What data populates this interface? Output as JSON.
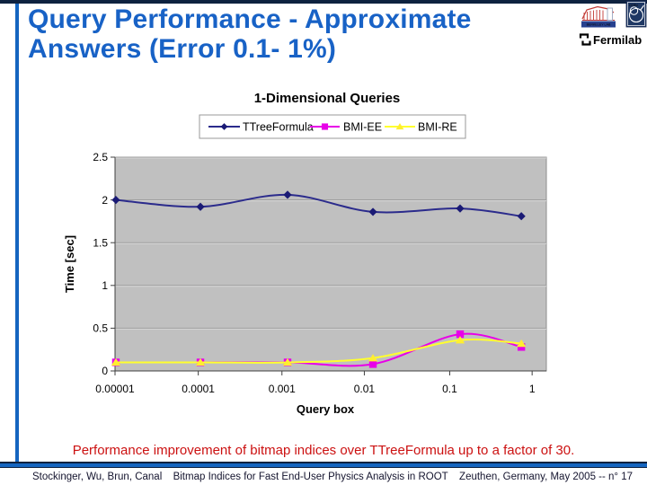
{
  "slide": {
    "title": {
      "line1": "Query Performance - Approximate",
      "line2": "Answers (Error 0.1- 1%)"
    },
    "highlight_text": "Performance improvement of bitmap indices over TTreeFormula up to a factor of 30.",
    "footer": {
      "left": "Stockinger, Wu, Brun, Canal",
      "center": "Bitmap Indices for Fast End-User Physics Analysis in ROOT",
      "right": "Zeuthen, Germany, May 2005 -- n° 17"
    },
    "logos": {
      "berkeley": "BERKELEY LAB",
      "cern": "CERN",
      "fermilab": "Fermilab"
    },
    "colors": {
      "title_blue": "#1862C6",
      "accent_blue": "#1565C0",
      "navy": "#0E2240",
      "red": "#CC1111"
    }
  },
  "chart_data": {
    "type": "line",
    "title": "1-Dimensional Queries",
    "xlabel": "Query box",
    "ylabel": "Time [sec]",
    "x_scale": "log",
    "x": [
      1e-05,
      0.0001,
      0.001,
      0.01,
      0.1,
      1
    ],
    "ylim": [
      0,
      2.5
    ],
    "plot_bg": "#C0C0C0",
    "grid": true,
    "legend_position": "top",
    "series": [
      {
        "name": "TTreeFormula",
        "marker": "diamond",
        "color": "#2B2B8C",
        "marker_color": "#1A1A75",
        "values": [
          2.0,
          1.92,
          2.06,
          1.86,
          1.9,
          1.81
        ]
      },
      {
        "name": "BMI-EE",
        "marker": "square",
        "color": "#E800E8",
        "marker_color": "#E800E8",
        "values": [
          0.1,
          0.1,
          0.1,
          0.08,
          0.43,
          0.28
        ]
      },
      {
        "name": "BMI-RE",
        "marker": "triangle",
        "color": "#FFFF2E",
        "marker_color": "#FFEE30",
        "values": [
          0.1,
          0.1,
          0.1,
          0.15,
          0.36,
          0.32
        ]
      }
    ],
    "x_ticks": [
      {
        "label": "0.00001",
        "f": 0.0
      },
      {
        "label": "0.0001",
        "f": 0.193
      },
      {
        "label": "0.001",
        "f": 0.387
      },
      {
        "label": "0.01",
        "f": 0.578
      },
      {
        "label": "0.1",
        "f": 0.776
      },
      {
        "label": "1",
        "f": 0.967
      }
    ],
    "y_ticks": [
      {
        "v": 0,
        "label": "0"
      },
      {
        "v": 0.5,
        "label": "0.5"
      },
      {
        "v": 1,
        "label": "1"
      },
      {
        "v": 1.5,
        "label": "1.5"
      },
      {
        "v": 2,
        "label": "2"
      },
      {
        "v": 2.5,
        "label": "2.5"
      }
    ],
    "point_fractions": [
      0.002,
      0.198,
      0.4,
      0.598,
      0.8,
      0.942
    ]
  }
}
